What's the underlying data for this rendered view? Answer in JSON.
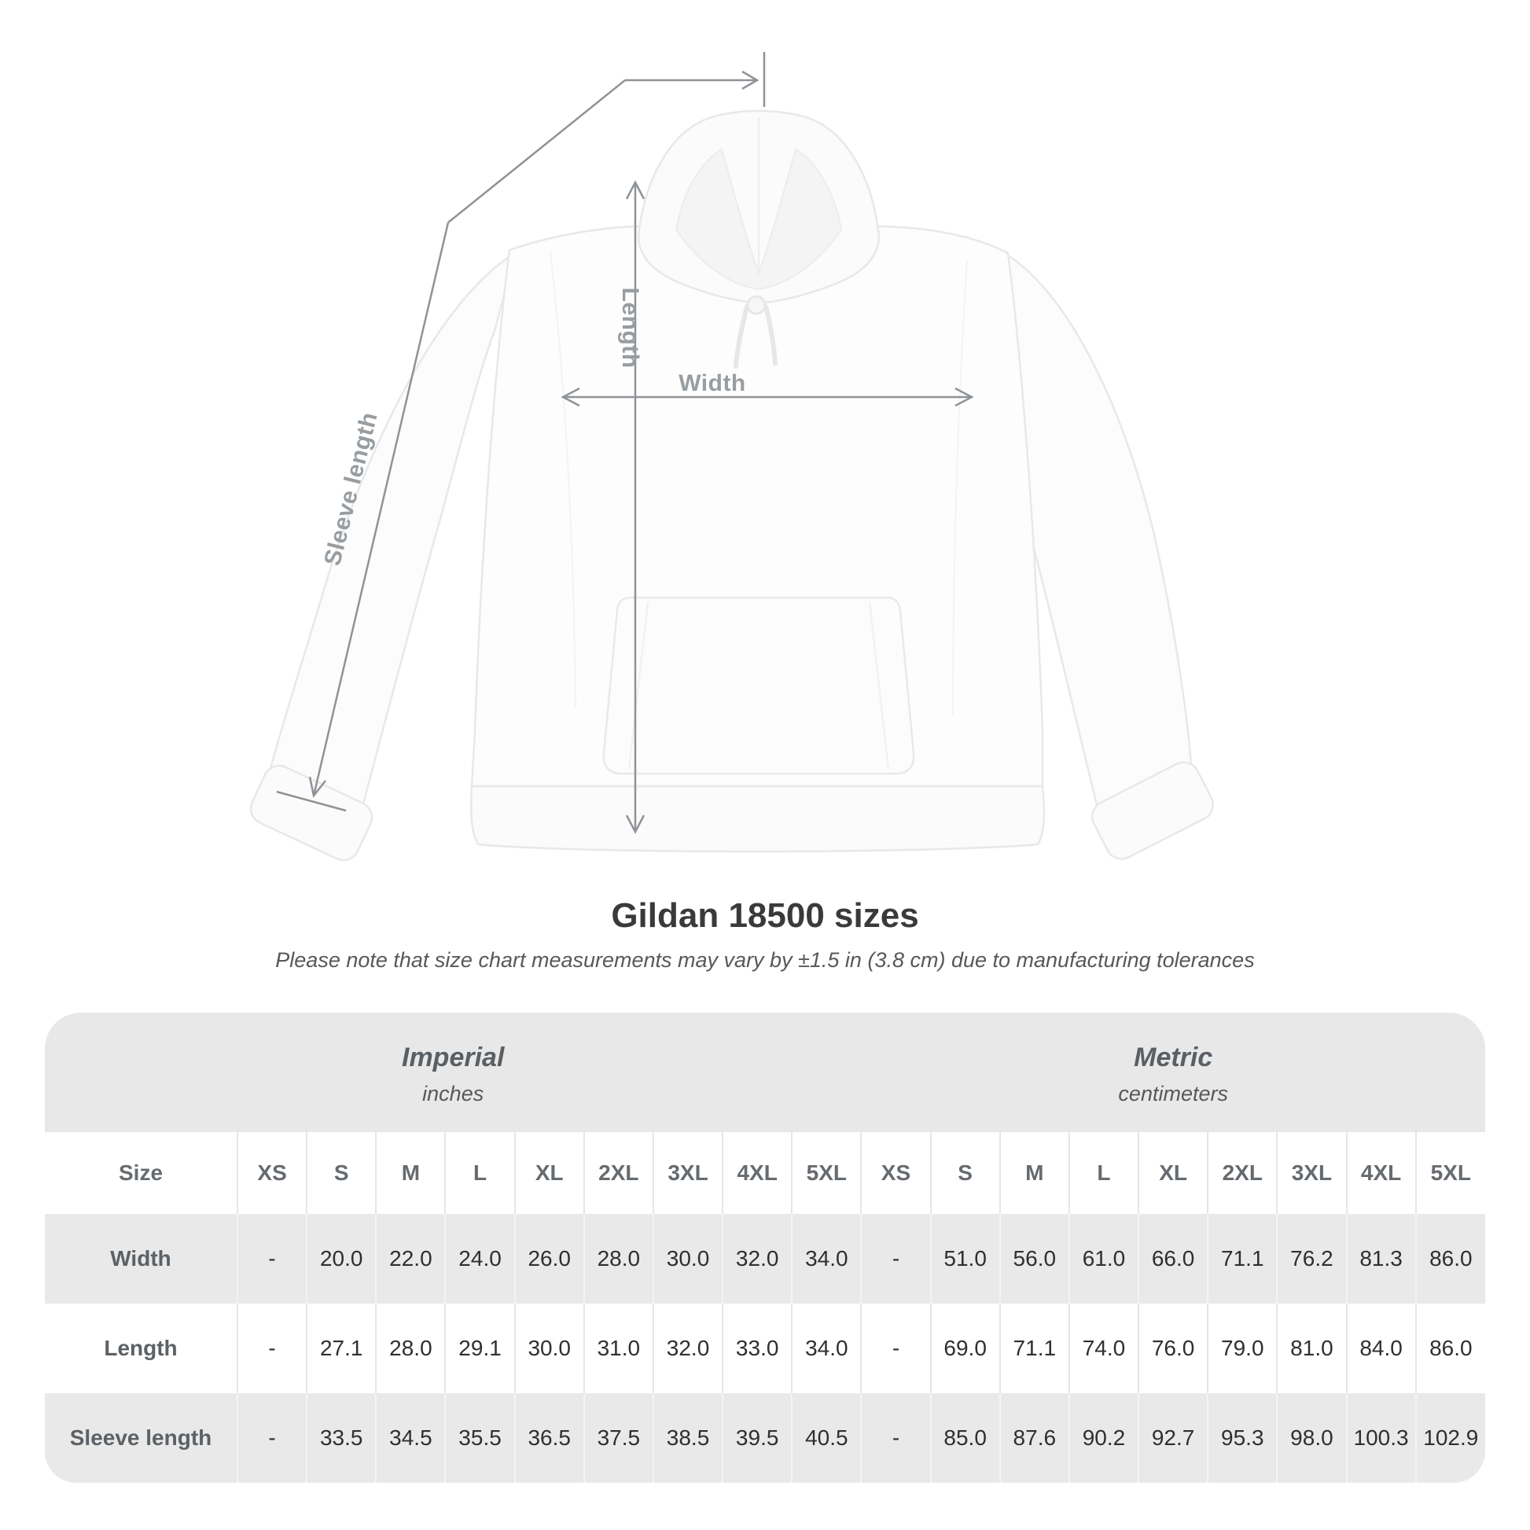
{
  "figure": {
    "labels": {
      "sleeve_length": "Sleeve length",
      "length": "Length",
      "width": "Width"
    },
    "line_color": "#8f9397",
    "label_color": "#989da1"
  },
  "title": "Gildan 18500 sizes",
  "subtitle": "Please note that size chart measurements may vary by ±1.5 in (3.8 cm) due to manufacturing tolerances",
  "table": {
    "size_header": "Size",
    "unit_groups": [
      {
        "label": "Imperial",
        "sublabel": "inches"
      },
      {
        "label": "Metric",
        "sublabel": "centimeters"
      }
    ],
    "sizes": [
      "XS",
      "S",
      "M",
      "L",
      "XL",
      "2XL",
      "3XL",
      "4XL",
      "5XL"
    ],
    "rows": [
      {
        "label": "Width",
        "imperial": [
          "-",
          "20.0",
          "22.0",
          "24.0",
          "26.0",
          "28.0",
          "30.0",
          "32.0",
          "34.0"
        ],
        "metric": [
          "-",
          "51.0",
          "56.0",
          "61.0",
          "66.0",
          "71.1",
          "76.2",
          "81.3",
          "86.0"
        ]
      },
      {
        "label": "Length",
        "imperial": [
          "-",
          "27.1",
          "28.0",
          "29.1",
          "30.0",
          "31.0",
          "32.0",
          "33.0",
          "34.0"
        ],
        "metric": [
          "-",
          "69.0",
          "71.1",
          "74.0",
          "76.0",
          "79.0",
          "81.0",
          "84.0",
          "86.0"
        ]
      },
      {
        "label": "Sleeve length",
        "imperial": [
          "-",
          "33.5",
          "34.5",
          "35.5",
          "36.5",
          "37.5",
          "38.5",
          "39.5",
          "40.5"
        ],
        "metric": [
          "-",
          "85.0",
          "87.6",
          "90.2",
          "92.7",
          "95.3",
          "98.0",
          "100.3",
          "102.9"
        ]
      }
    ]
  },
  "chart_data": {
    "type": "table",
    "title": "Gildan 18500 sizes",
    "columns": [
      "XS",
      "S",
      "M",
      "L",
      "XL",
      "2XL",
      "3XL",
      "4XL",
      "5XL"
    ],
    "series": [
      {
        "name": "Width (inches)",
        "values": [
          null,
          20.0,
          22.0,
          24.0,
          26.0,
          28.0,
          30.0,
          32.0,
          34.0
        ]
      },
      {
        "name": "Length (inches)",
        "values": [
          null,
          27.1,
          28.0,
          29.1,
          30.0,
          31.0,
          32.0,
          33.0,
          34.0
        ]
      },
      {
        "name": "Sleeve length (inches)",
        "values": [
          null,
          33.5,
          34.5,
          35.5,
          36.5,
          37.5,
          38.5,
          39.5,
          40.5
        ]
      },
      {
        "name": "Width (cm)",
        "values": [
          null,
          51.0,
          56.0,
          61.0,
          66.0,
          71.1,
          76.2,
          81.3,
          86.0
        ]
      },
      {
        "name": "Length (cm)",
        "values": [
          null,
          69.0,
          71.1,
          74.0,
          76.0,
          79.0,
          81.0,
          84.0,
          86.0
        ]
      },
      {
        "name": "Sleeve length (cm)",
        "values": [
          null,
          85.0,
          87.6,
          90.2,
          92.7,
          95.3,
          98.0,
          100.3,
          102.9
        ]
      }
    ]
  },
  "colors": {
    "band_bg": "#e8e8e8",
    "row_shade_bg": "#e9e9e9",
    "value_text": "#2e2f31",
    "heading_text": "#3a3a3c",
    "muted_text": "#56585a"
  }
}
